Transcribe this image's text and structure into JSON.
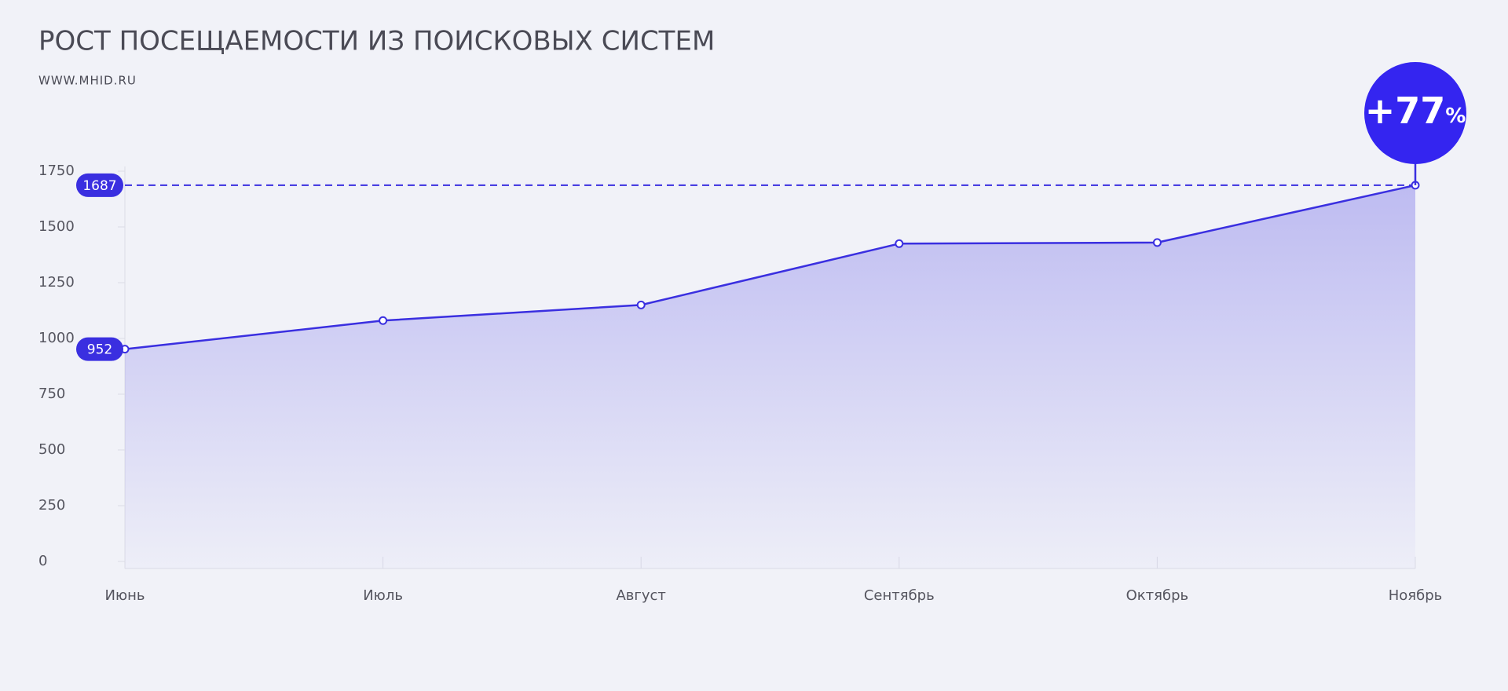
{
  "chart_data": {
    "type": "area",
    "title": "РОСТ ПОСЕЩАЕМОСТИ ИЗ ПОИСКОВЫХ СИСТЕМ",
    "subtitle": "WWW.MHID.RU",
    "badge": {
      "number": "+77",
      "unit": "%"
    },
    "categories": [
      "Июнь",
      "Июль",
      "Август",
      "Сентябрь",
      "Октябрь",
      "Ноябрь"
    ],
    "values": [
      952,
      1080,
      1150,
      1425,
      1430,
      1687
    ],
    "color": "#3a2fe0",
    "ylim": [
      0,
      1750
    ],
    "yticks": [
      0,
      250,
      500,
      750,
      1000,
      1250,
      1500,
      1750
    ]
  }
}
